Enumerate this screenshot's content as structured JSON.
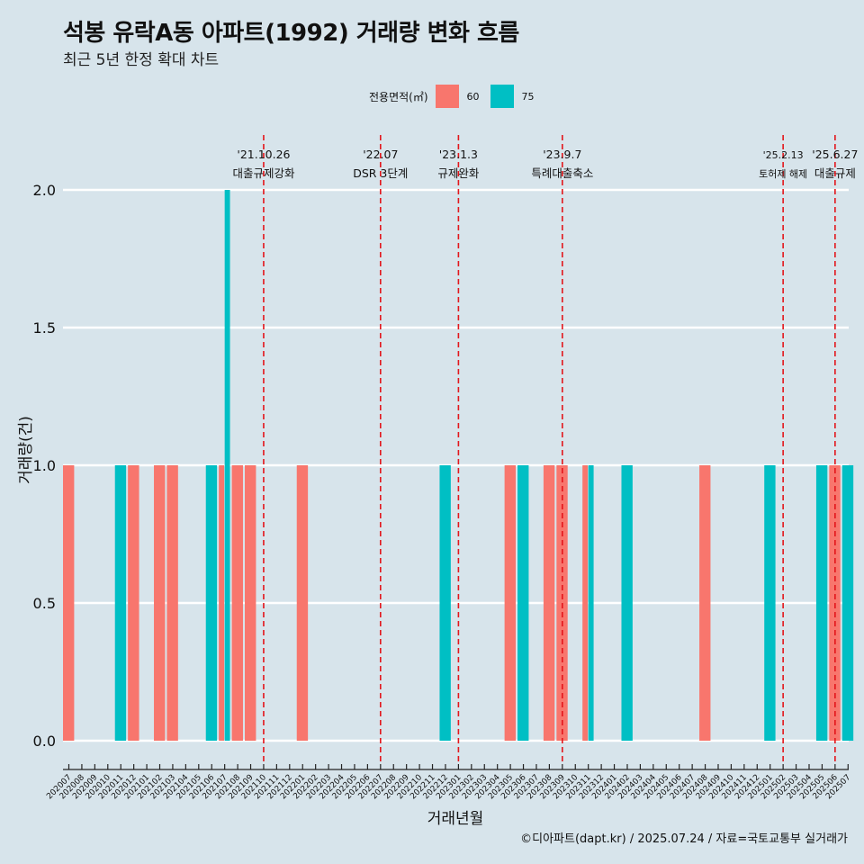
{
  "header": {
    "title": "석봉 유락A동 아파트(1992) 거래량 변화 흐름",
    "subtitle": "최근 5년 한정 확대 차트"
  },
  "caption": "©디아파트(dapt.kr) / 2025.07.24 / 자료=국토교통부 실거래가",
  "colors": {
    "background": "#d7e4eb",
    "s60": "#f8766d",
    "s75": "#00bfc4",
    "event": "#e3161b",
    "grid": "#ffffff"
  },
  "chart_data": {
    "type": "bar",
    "xlabel": "거래년월",
    "ylabel": "거래량(건)",
    "ylim": [
      0,
      2
    ],
    "yticks": [
      "0.0",
      "0.5",
      "1.0",
      "1.5",
      "2.0"
    ],
    "grid": true,
    "legend": {
      "title": "전용면적(㎡)",
      "position": "top"
    },
    "categories": [
      "202007",
      "202008",
      "202009",
      "202010",
      "202011",
      "202012",
      "202101",
      "202102",
      "202103",
      "202104",
      "202105",
      "202106",
      "202107",
      "202108",
      "202109",
      "202110",
      "202111",
      "202112",
      "202201",
      "202202",
      "202203",
      "202204",
      "202205",
      "202206",
      "202207",
      "202208",
      "202209",
      "202210",
      "202211",
      "202212",
      "202301",
      "202302",
      "202303",
      "202304",
      "202305",
      "202306",
      "202307",
      "202308",
      "202309",
      "202310",
      "202311",
      "202312",
      "202401",
      "202402",
      "202403",
      "202404",
      "202405",
      "202406",
      "202407",
      "202408",
      "202409",
      "202410",
      "202411",
      "202412",
      "202501",
      "202502",
      "202503",
      "202504",
      "202505",
      "202506",
      "202507"
    ],
    "bars": [
      {
        "x": "202007",
        "series": "60",
        "value": 1
      },
      {
        "x": "202011",
        "series": "75",
        "value": 1
      },
      {
        "x": "202012",
        "series": "60",
        "value": 1
      },
      {
        "x": "202102",
        "series": "60",
        "value": 1
      },
      {
        "x": "202103",
        "series": "60",
        "value": 1
      },
      {
        "x": "202106",
        "series": "75",
        "value": 1
      },
      {
        "x": "202107",
        "series": "60",
        "value": 1
      },
      {
        "x": "202107",
        "series": "75",
        "value": 2
      },
      {
        "x": "202108",
        "series": "60",
        "value": 1
      },
      {
        "x": "202109",
        "series": "60",
        "value": 1
      },
      {
        "x": "202201",
        "series": "60",
        "value": 1
      },
      {
        "x": "202212",
        "series": "75",
        "value": 1
      },
      {
        "x": "202305",
        "series": "60",
        "value": 1
      },
      {
        "x": "202306",
        "series": "75",
        "value": 1
      },
      {
        "x": "202308",
        "series": "60",
        "value": 1
      },
      {
        "x": "202309",
        "series": "60",
        "value": 1
      },
      {
        "x": "202311",
        "series": "60",
        "value": 1
      },
      {
        "x": "202311",
        "series": "75",
        "value": 1
      },
      {
        "x": "202402",
        "series": "75",
        "value": 1
      },
      {
        "x": "202408",
        "series": "60",
        "value": 1
      },
      {
        "x": "202501",
        "series": "75",
        "value": 1
      },
      {
        "x": "202505",
        "series": "75",
        "value": 1
      },
      {
        "x": "202506",
        "series": "60",
        "value": 1
      },
      {
        "x": "202507",
        "series": "75",
        "value": 1
      }
    ],
    "series": [
      {
        "name": "60",
        "color": "#f8766d"
      },
      {
        "name": "75",
        "color": "#00bfc4"
      }
    ],
    "events": [
      {
        "x": "202110",
        "date": "'21.10.26",
        "label": "대출규제강화"
      },
      {
        "x": "202207",
        "date": "'22.07",
        "label": "DSR 3단계"
      },
      {
        "x": "202301",
        "date": "'23.1.3",
        "label": "규제완화"
      },
      {
        "x": "202309",
        "date": "'23.9.7",
        "label": "특례대출축소"
      },
      {
        "x": "202502",
        "date": "'25.2.13",
        "label": "토허제 해제"
      },
      {
        "x": "202506",
        "date": "'25.6.27",
        "label": "대출규제"
      }
    ]
  }
}
